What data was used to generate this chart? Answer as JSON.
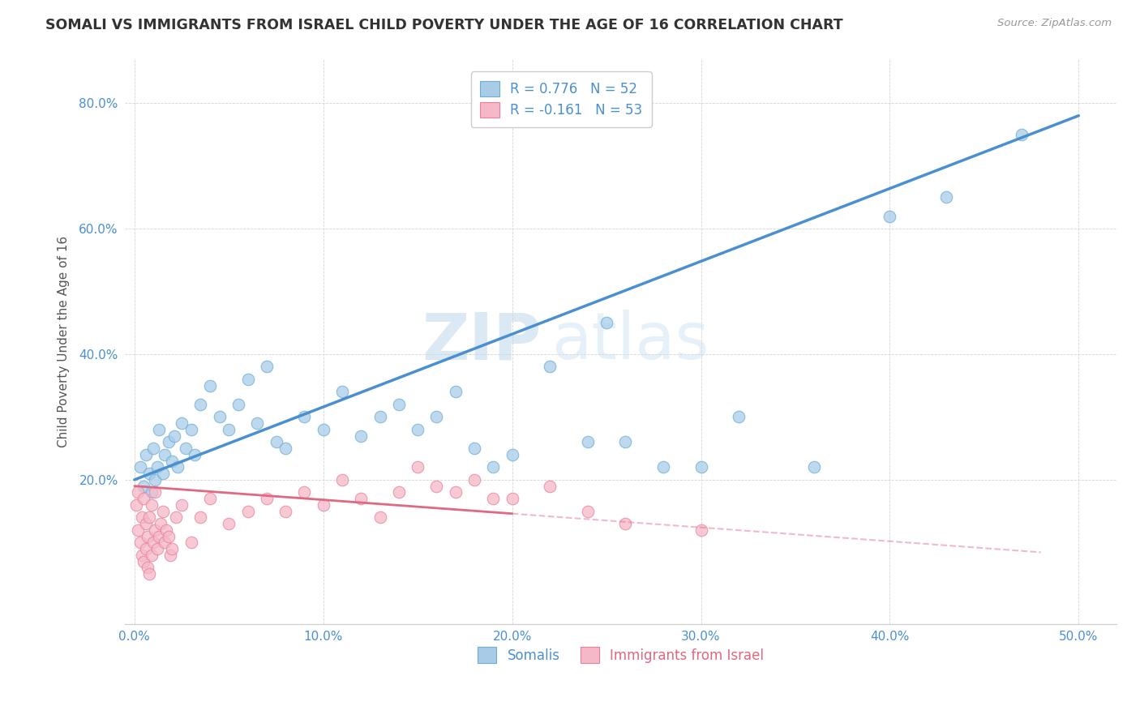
{
  "title": "SOMALI VS IMMIGRANTS FROM ISRAEL CHILD POVERTY UNDER THE AGE OF 16 CORRELATION CHART",
  "source": "Source: ZipAtlas.com",
  "ylabel": "Child Poverty Under the Age of 16",
  "x_tick_labels": [
    "0.0%",
    "10.0%",
    "20.0%",
    "30.0%",
    "40.0%",
    "50.0%"
  ],
  "x_tick_values": [
    0,
    10,
    20,
    30,
    40,
    50
  ],
  "y_tick_labels": [
    "20.0%",
    "40.0%",
    "60.0%",
    "80.0%"
  ],
  "y_tick_values": [
    20,
    40,
    60,
    80
  ],
  "xlim": [
    -0.5,
    52
  ],
  "ylim": [
    -3,
    87
  ],
  "somali_color": "#a8cce8",
  "israel_color": "#f5b8c8",
  "somali_edge": "#6aadd5",
  "israel_edge": "#e8809a",
  "trend_somali_color": "#4a90d0",
  "trend_israel_color": "#e06880",
  "legend1_label": "R = 0.776   N = 52",
  "legend2_label": "R = -0.161   N = 53",
  "legend_somalis": "Somalis",
  "legend_israel": "Immigrants from Israel",
  "watermark_zip": "ZIP",
  "watermark_atlas": "atlas",
  "background_color": "#ffffff",
  "grid_color": "#d0d0d0",
  "somali_trend_x0": 0,
  "somali_trend_y0": 20,
  "somali_trend_x1": 50,
  "somali_trend_y1": 78,
  "israel_trend_x0": 0,
  "israel_trend_y0": 19,
  "israel_trend_x1": 50,
  "israel_trend_y1": 8,
  "israel_solid_end_x": 20,
  "somali_scatter_x": [
    0.3,
    0.5,
    0.6,
    0.8,
    0.9,
    1.0,
    1.1,
    1.2,
    1.3,
    1.5,
    1.6,
    1.8,
    2.0,
    2.1,
    2.3,
    2.5,
    2.7,
    3.0,
    3.2,
    3.5,
    4.0,
    4.5,
    5.0,
    5.5,
    6.0,
    6.5,
    7.0,
    7.5,
    8.0,
    9.0,
    10.0,
    11.0,
    12.0,
    13.0,
    14.0,
    15.0,
    16.0,
    17.0,
    18.0,
    19.0,
    20.0,
    22.0,
    24.0,
    25.0,
    26.0,
    28.0,
    30.0,
    32.0,
    36.0,
    40.0,
    43.0,
    47.0
  ],
  "somali_scatter_y": [
    22,
    19,
    24,
    21,
    18,
    25,
    20,
    22,
    28,
    21,
    24,
    26,
    23,
    27,
    22,
    29,
    25,
    28,
    24,
    32,
    35,
    30,
    28,
    32,
    36,
    29,
    38,
    26,
    25,
    30,
    28,
    34,
    27,
    30,
    32,
    28,
    30,
    34,
    25,
    22,
    24,
    38,
    26,
    45,
    26,
    22,
    22,
    30,
    22,
    62,
    65,
    75
  ],
  "israel_scatter_x": [
    0.1,
    0.2,
    0.2,
    0.3,
    0.4,
    0.4,
    0.5,
    0.5,
    0.6,
    0.6,
    0.7,
    0.7,
    0.8,
    0.8,
    0.9,
    0.9,
    1.0,
    1.1,
    1.1,
    1.2,
    1.3,
    1.4,
    1.5,
    1.6,
    1.7,
    1.8,
    1.9,
    2.0,
    2.2,
    2.5,
    3.0,
    3.5,
    4.0,
    5.0,
    6.0,
    7.0,
    8.0,
    9.0,
    10.0,
    11.0,
    12.0,
    13.0,
    14.0,
    15.0,
    16.0,
    17.0,
    18.0,
    19.0,
    20.0,
    22.0,
    24.0,
    26.0,
    30.0
  ],
  "israel_scatter_y": [
    16,
    12,
    18,
    10,
    14,
    8,
    7,
    17,
    9,
    13,
    6,
    11,
    5,
    14,
    8,
    16,
    10,
    12,
    18,
    9,
    11,
    13,
    15,
    10,
    12,
    11,
    8,
    9,
    14,
    16,
    10,
    14,
    17,
    13,
    15,
    17,
    15,
    18,
    16,
    20,
    17,
    14,
    18,
    22,
    19,
    18,
    20,
    17,
    17,
    19,
    15,
    13,
    12
  ]
}
